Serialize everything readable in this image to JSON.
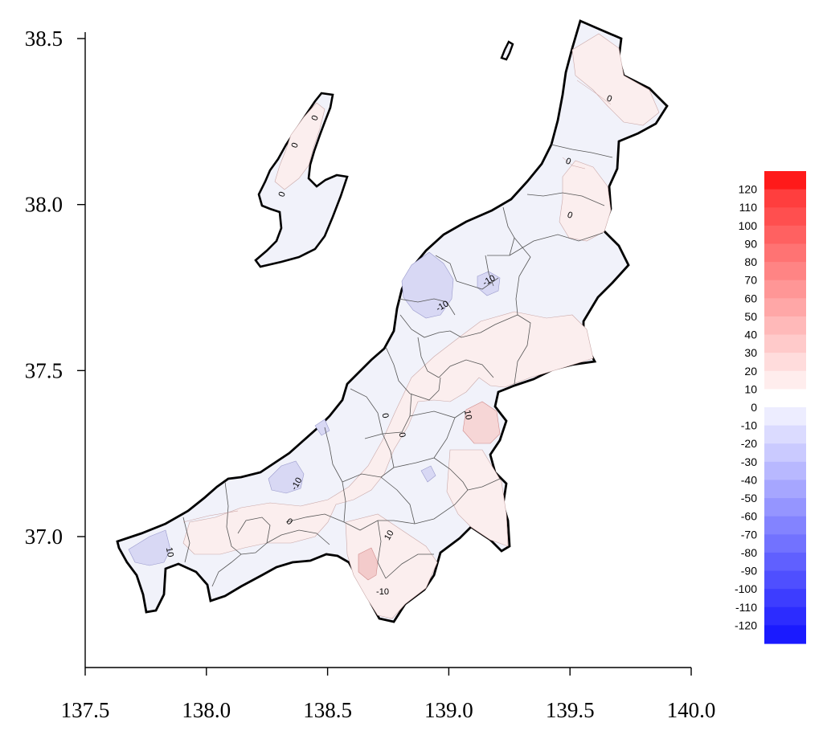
{
  "map": {
    "x_axis": {
      "min": 137.5,
      "max": 140.0,
      "ticks": [
        137.5,
        138.0,
        138.5,
        139.0,
        139.5,
        140.0
      ],
      "tick_labels": [
        "137.5",
        "138.0",
        "138.5",
        "139.0",
        "139.5",
        "140.0"
      ]
    },
    "y_axis": {
      "min": 36.6,
      "max": 38.5,
      "ticks": [
        37.0,
        37.5,
        38.0,
        38.5
      ],
      "tick_labels": [
        "37.0",
        "37.5",
        "38.0",
        "38.5"
      ]
    },
    "colorbar": {
      "levels": [
        120,
        110,
        100,
        90,
        80,
        70,
        60,
        50,
        40,
        30,
        20,
        10,
        0,
        -10,
        -20,
        -30,
        -40,
        -50,
        -60,
        -70,
        -80,
        -90,
        -100,
        -110,
        -120
      ],
      "labels": [
        "120",
        "110",
        "100",
        "90",
        "80",
        "70",
        "60",
        "50",
        "40",
        "30",
        "20",
        "10",
        "0",
        "-10",
        "-20",
        "-30",
        "-40",
        "-50",
        "-60",
        "-70",
        "-80",
        "-90",
        "-100",
        "-110",
        "-120"
      ],
      "max_color": "#ff1a1a",
      "mid_color": "#ffffff",
      "min_color": "#1a1aff"
    },
    "outline_color": "#000000",
    "background_fill": "#f1f2fa",
    "positive_tint": "#fbeeee",
    "negative_tint": "#dcdcf5",
    "contour_labels": [
      "0",
      "0",
      "0",
      "0",
      "0",
      "-10",
      "-10",
      "0",
      "0",
      "10",
      "10",
      "-10",
      "0",
      "10",
      "-10",
      "0"
    ]
  }
}
